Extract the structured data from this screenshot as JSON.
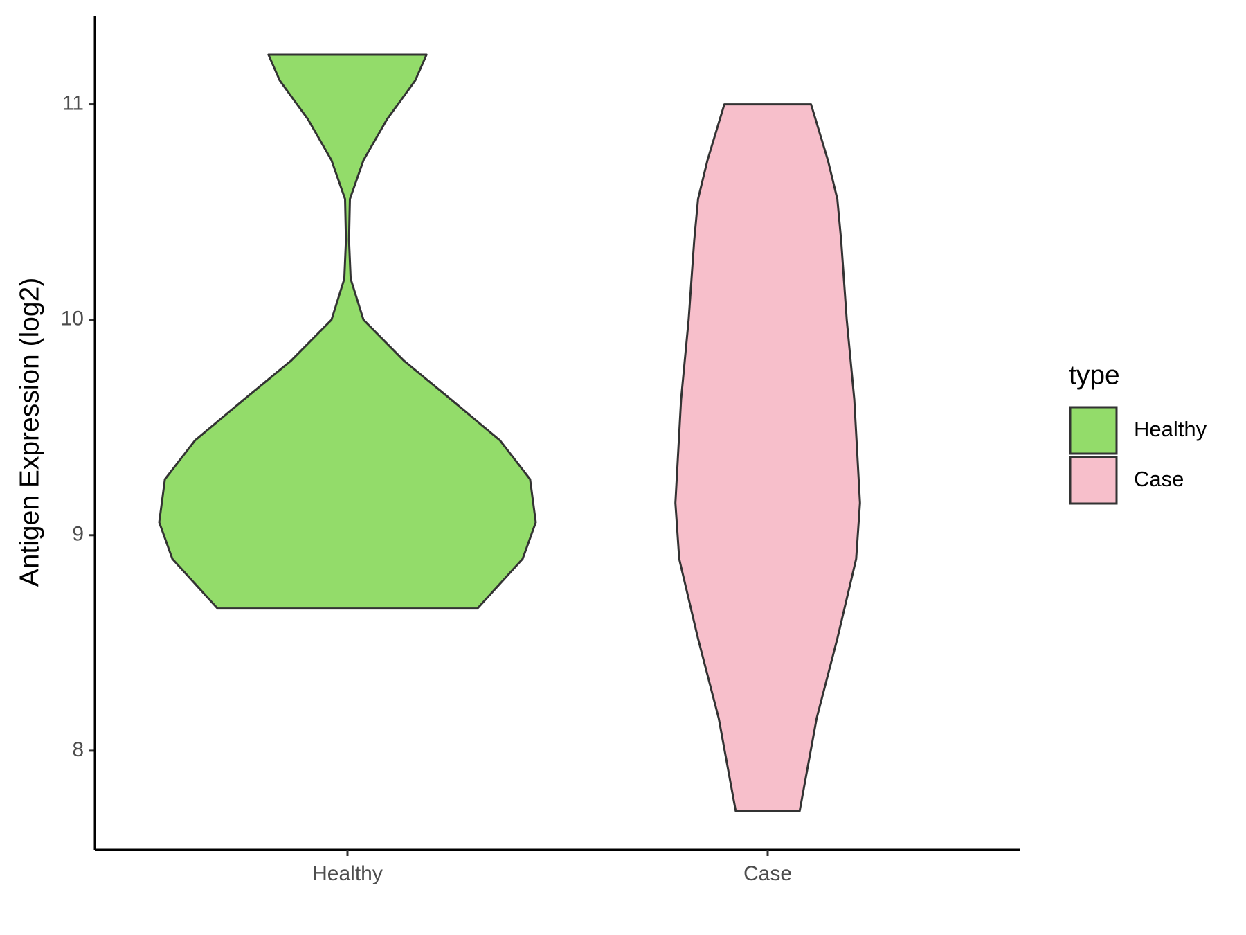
{
  "chart_data": {
    "type": "violin",
    "y_label": "Antigen Expression (log2)",
    "categories": [
      "Healthy",
      "Case"
    ],
    "legend_title": "type",
    "legend_position": "right",
    "ylim": [
      7.54,
      11.41
    ],
    "yticks": [
      8,
      9,
      10,
      11
    ],
    "outline_color": "#333333",
    "series": [
      {
        "name": "Healthy",
        "color": "#93dc6a",
        "y": [
          11.23,
          11.11,
          10.93,
          10.74,
          10.56,
          10.37,
          10.19,
          10.0,
          9.81,
          9.63,
          9.44,
          9.26,
          9.06,
          8.89,
          8.66
        ],
        "widths": [
          0.42,
          0.36,
          0.21,
          0.085,
          0.013,
          0.008,
          0.017,
          0.085,
          0.3,
          0.55,
          0.81,
          0.97,
          1.0,
          0.93,
          0.69
        ]
      },
      {
        "name": "Case",
        "color": "#f7bfcb",
        "y": [
          11.0,
          10.74,
          10.56,
          10.37,
          10.0,
          9.63,
          9.15,
          8.89,
          8.52,
          8.15,
          7.72
        ],
        "widths": [
          0.23,
          0.32,
          0.37,
          0.39,
          0.42,
          0.46,
          0.49,
          0.47,
          0.37,
          0.26,
          0.17
        ]
      }
    ]
  }
}
